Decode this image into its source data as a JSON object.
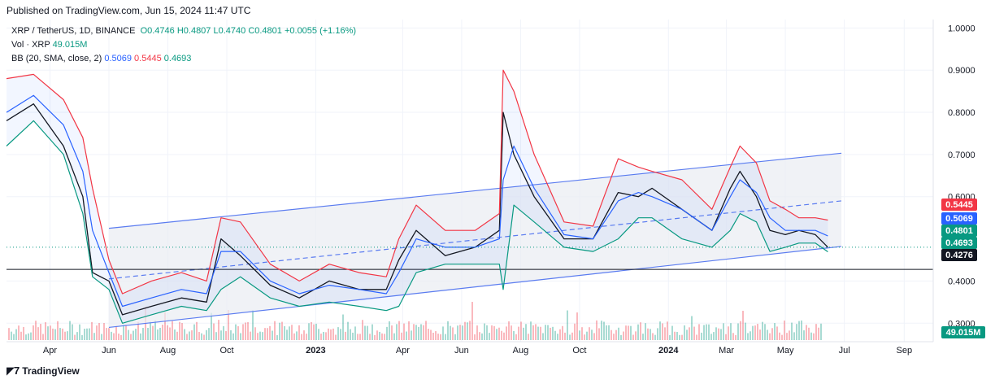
{
  "header": {
    "published": "Published on TradingView.com, Jun 15, 2024 11:47 UTC"
  },
  "legend": {
    "symbol": "XRP / TetherUS, 1D, BINANCE",
    "open": "O0.4746",
    "high": "H0.4807",
    "low": "L0.4740",
    "close": "C0.4801",
    "change": "+0.0055 (+1.16%)",
    "vol_label": "Vol · XRP",
    "vol_value": "49.015M",
    "bb_label": "BB (20, SMA, close, 2)",
    "bb_basis": "0.5069",
    "bb_upper": "0.5445",
    "bb_lower": "0.4693"
  },
  "footer": {
    "brand": "TradingView"
  },
  "colors": {
    "up": "#089981",
    "down": "#f23645",
    "basis": "#2962ff",
    "channel": "#5b7cf0",
    "support": "#131722",
    "grid": "#f0f3fa"
  },
  "chart_data": {
    "type": "line",
    "title": "XRP / TetherUS, 1D, BINANCE",
    "ylim": [
      0.26,
      1.02
    ],
    "y_ticks": [
      "1.0000",
      "0.9000",
      "0.8000",
      "0.7000",
      "0.6000",
      "0.4000",
      "0.3000"
    ],
    "x_ticks": [
      "Apr",
      "Jun",
      "Aug",
      "Oct",
      "2023",
      "Apr",
      "Jun",
      "Aug",
      "Oct",
      "2024",
      "Mar",
      "May",
      "Jul",
      "Sep"
    ],
    "x": [
      "2022-02-15",
      "2022-03-15",
      "2022-04-15",
      "2022-05-05",
      "2022-05-15",
      "2022-06-01",
      "2022-06-15",
      "2022-07-15",
      "2022-08-15",
      "2022-09-10",
      "2022-09-25",
      "2022-10-15",
      "2022-11-15",
      "2022-12-15",
      "2023-01-15",
      "2023-02-15",
      "2023-03-15",
      "2023-03-28",
      "2023-04-15",
      "2023-05-15",
      "2023-06-15",
      "2023-07-10",
      "2023-07-14",
      "2023-07-25",
      "2023-08-15",
      "2023-09-15",
      "2023-10-15",
      "2023-11-10",
      "2023-12-01",
      "2023-12-15",
      "2024-01-15",
      "2024-02-15",
      "2024-03-05",
      "2024-03-15",
      "2024-04-01",
      "2024-04-15",
      "2024-05-01",
      "2024-05-15",
      "2024-06-01",
      "2024-06-14"
    ],
    "series": [
      {
        "name": "0.4801",
        "values": [
          0.78,
          0.82,
          0.72,
          0.6,
          0.42,
          0.4,
          0.32,
          0.34,
          0.36,
          0.35,
          0.5,
          0.46,
          0.39,
          0.36,
          0.4,
          0.38,
          0.38,
          0.45,
          0.52,
          0.46,
          0.48,
          0.52,
          0.8,
          0.7,
          0.6,
          0.5,
          0.5,
          0.61,
          0.6,
          0.62,
          0.57,
          0.52,
          0.62,
          0.66,
          0.6,
          0.52,
          0.51,
          0.52,
          0.51,
          0.4801
        ]
      },
      {
        "name": "0.5445",
        "values": [
          0.88,
          0.89,
          0.83,
          0.74,
          0.62,
          0.45,
          0.37,
          0.4,
          0.42,
          0.4,
          0.55,
          0.54,
          0.44,
          0.4,
          0.44,
          0.42,
          0.41,
          0.5,
          0.58,
          0.52,
          0.52,
          0.56,
          0.9,
          0.85,
          0.7,
          0.54,
          0.53,
          0.69,
          0.67,
          0.66,
          0.64,
          0.57,
          0.67,
          0.72,
          0.68,
          0.59,
          0.57,
          0.55,
          0.55,
          0.5445
        ]
      },
      {
        "name": "0.5069",
        "values": [
          0.8,
          0.84,
          0.77,
          0.66,
          0.52,
          0.42,
          0.34,
          0.36,
          0.38,
          0.37,
          0.47,
          0.47,
          0.4,
          0.37,
          0.39,
          0.38,
          0.37,
          0.42,
          0.5,
          0.48,
          0.48,
          0.5,
          0.64,
          0.72,
          0.62,
          0.51,
          0.5,
          0.59,
          0.61,
          0.6,
          0.57,
          0.52,
          0.6,
          0.64,
          0.61,
          0.55,
          0.52,
          0.52,
          0.52,
          0.5069
        ]
      },
      {
        "name": "0.4693",
        "values": [
          0.72,
          0.78,
          0.7,
          0.56,
          0.41,
          0.38,
          0.3,
          0.32,
          0.34,
          0.33,
          0.38,
          0.41,
          0.36,
          0.34,
          0.35,
          0.34,
          0.33,
          0.34,
          0.42,
          0.44,
          0.44,
          0.44,
          0.38,
          0.58,
          0.54,
          0.48,
          0.47,
          0.5,
          0.55,
          0.55,
          0.5,
          0.48,
          0.52,
          0.56,
          0.54,
          0.47,
          0.48,
          0.49,
          0.49,
          0.4693
        ]
      }
    ],
    "channel": {
      "start": "2022-06-01",
      "end": "2024-06-28",
      "upper": [
        0.525,
        0.703
      ],
      "mid": [
        0.405,
        0.59
      ],
      "lower": [
        0.29,
        0.482
      ]
    },
    "support": 0.4276,
    "price_labels": [
      "0.5445",
      "0.5069",
      "0.4801",
      "0.4693",
      "0.4276"
    ],
    "volume_label": "49.015M",
    "grid": true
  }
}
